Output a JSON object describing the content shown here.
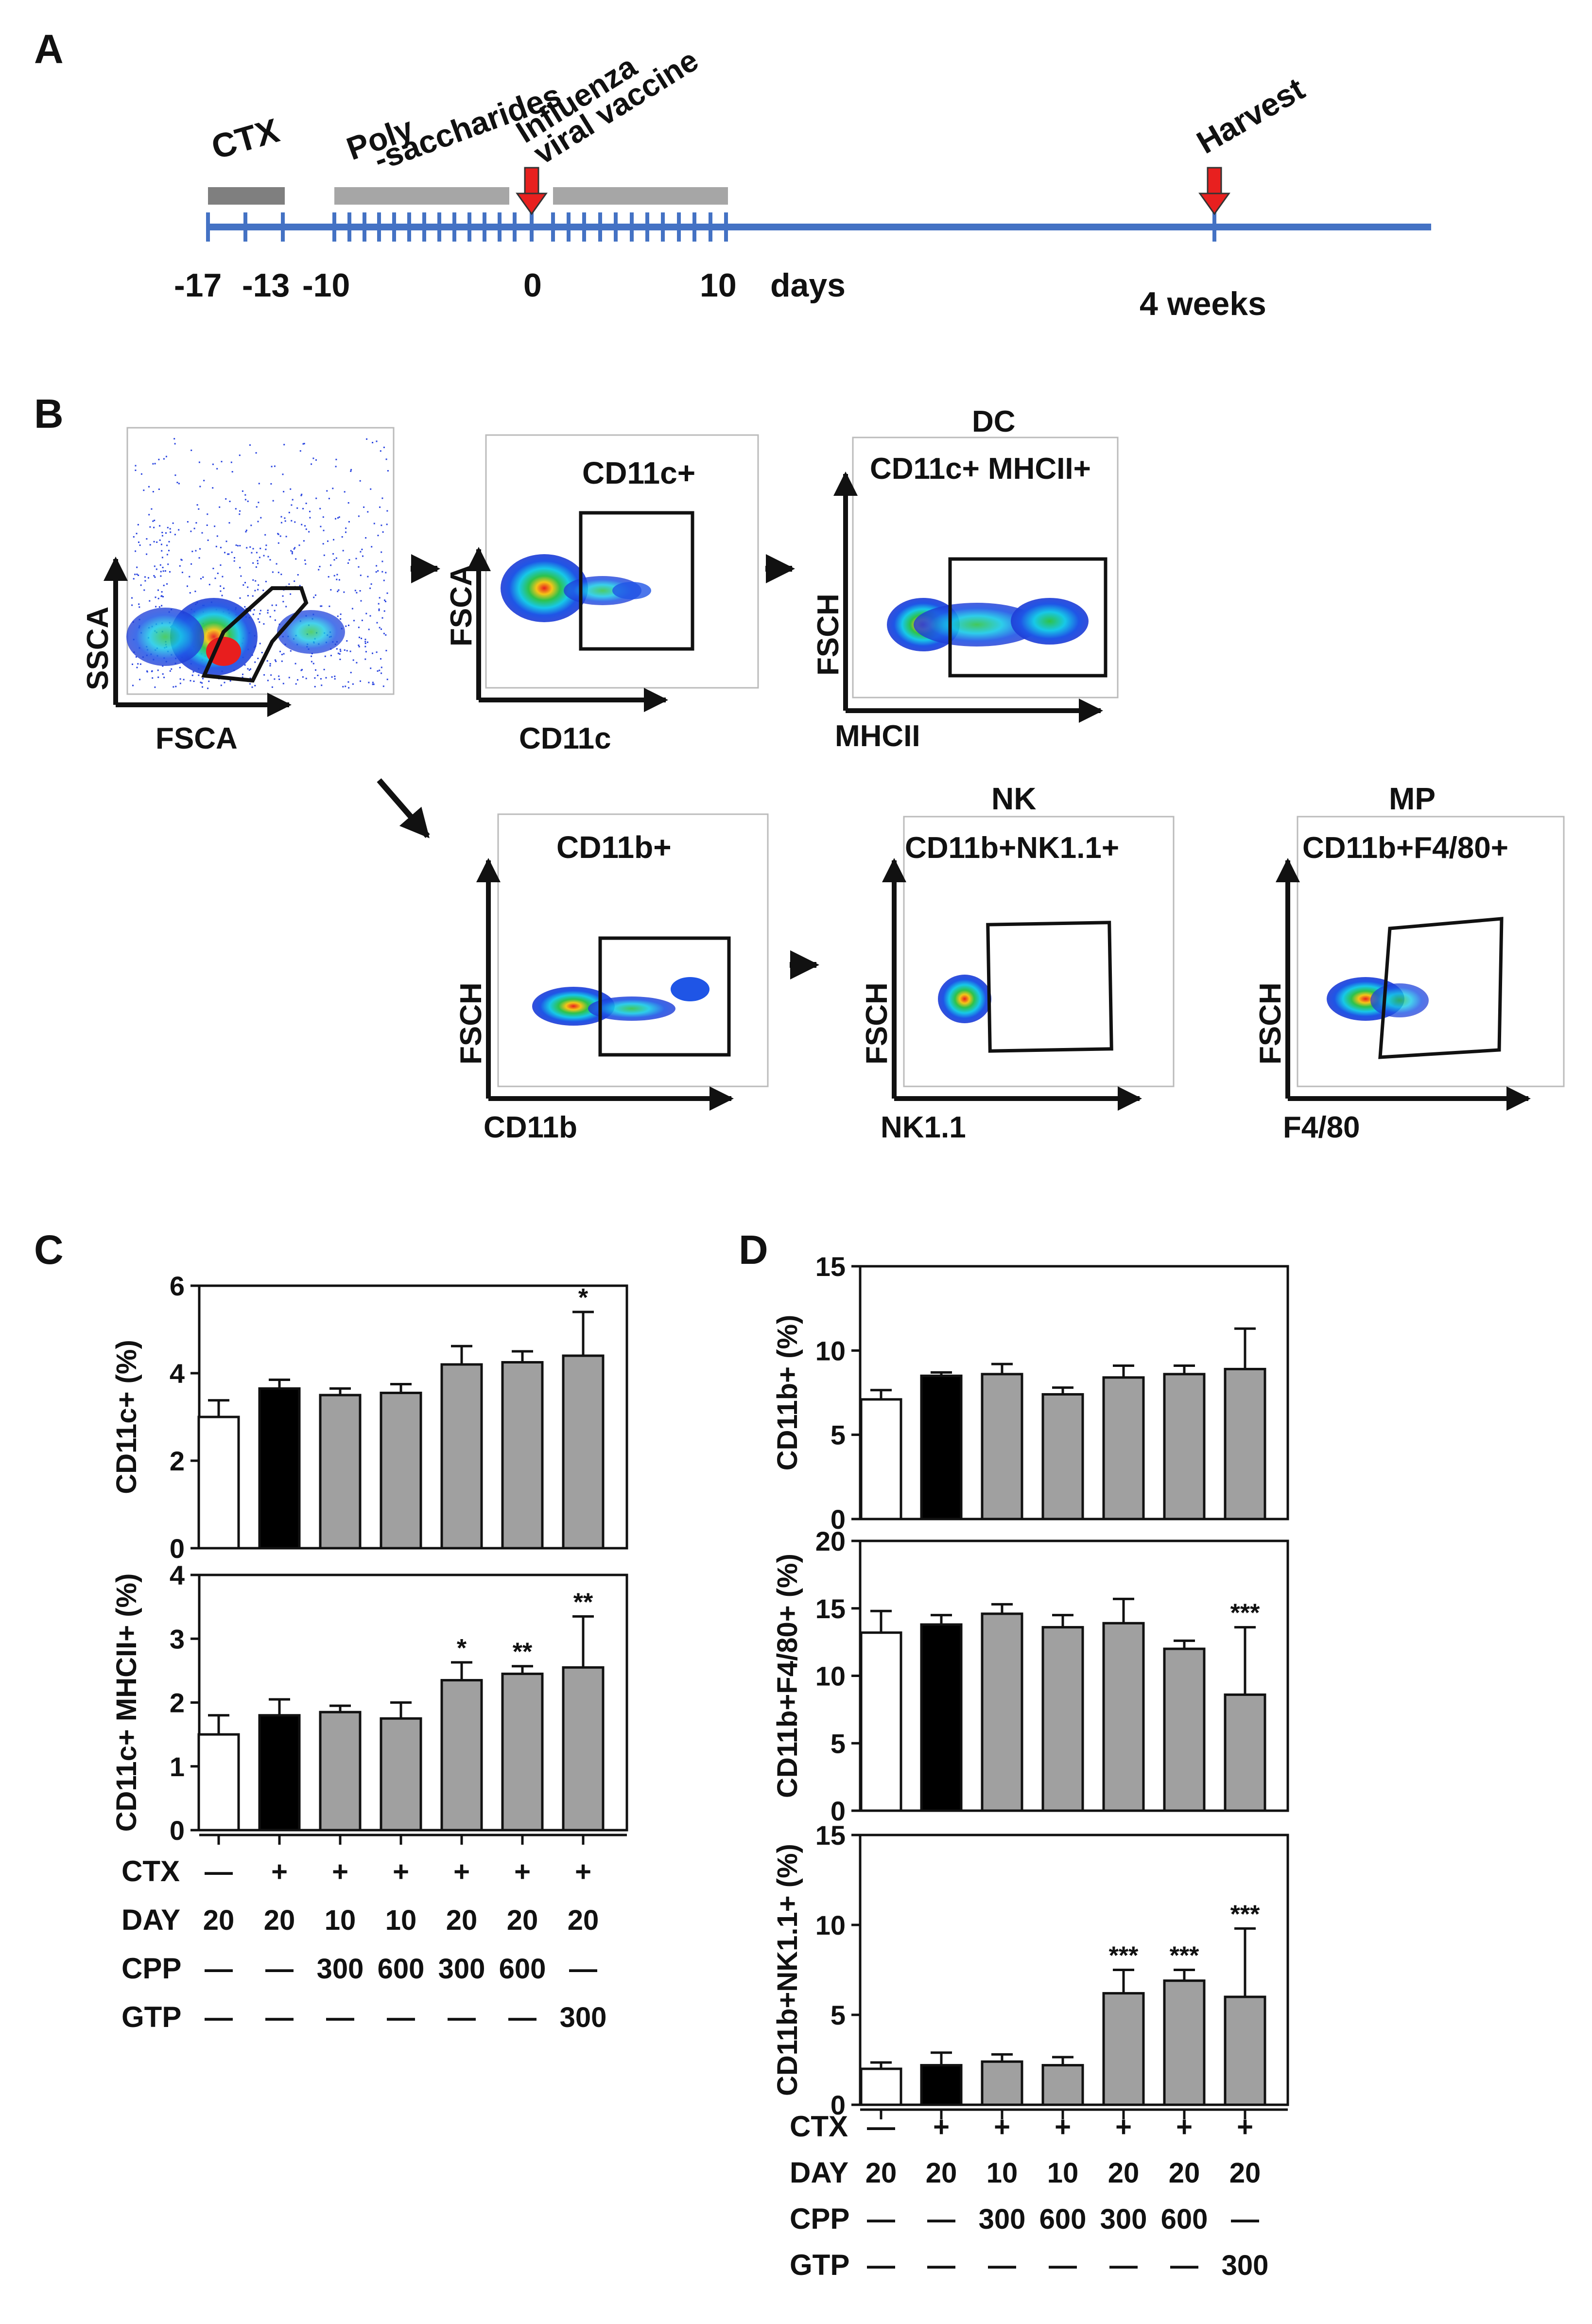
{
  "panel_labels": {
    "a": "A",
    "b": "B",
    "c": "C",
    "d": "D"
  },
  "timeline": {
    "ctx": "CTX",
    "poly_line1": "Poly",
    "poly_line2": "-saccharides",
    "flu_line1": "Influenza",
    "flu_line2": "viral vaccine",
    "harvest": "Harvest",
    "tick_labels": [
      "-17",
      "-13",
      "-10",
      "0",
      "10"
    ],
    "days": "days",
    "weeks": "4 weeks"
  },
  "flow": {
    "p1": {
      "x": "FSCA",
      "y": "SSCA"
    },
    "p2": {
      "title": "CD11c+",
      "x": "CD11c",
      "y": "FSCA"
    },
    "p3": {
      "header": "DC",
      "title": "CD11c+ MHCII+",
      "x": "MHCII",
      "y": "FSCH"
    },
    "p4": {
      "title": "CD11b+",
      "x": "CD11b",
      "y": "FSCH"
    },
    "p5": {
      "header": "NK",
      "title": "CD11b+NK1.1+",
      "x": "NK1.1",
      "y": "FSCH"
    },
    "p6": {
      "header": "MP",
      "title": "CD11b+F4/80+",
      "x": "F4/80",
      "y": "FSCH"
    }
  },
  "colors": {
    "bar_control": "#ffffff",
    "bar_ctx": "#000000",
    "bar_treated": "#a0a0a0",
    "timeline": "#4472c4",
    "arrow_red": "#e8201f",
    "gray_bar_dark": "#7f7f7f",
    "gray_bar_light": "#a6a6a6"
  },
  "condition_table": {
    "rows": [
      "CTX",
      "DAY",
      "CPP",
      "GTP"
    ],
    "values": [
      [
        "—",
        "+",
        "+",
        "+",
        "+",
        "+",
        "+"
      ],
      [
        "20",
        "20",
        "10",
        "10",
        "20",
        "20",
        "20"
      ],
      [
        "—",
        "—",
        "300",
        "600",
        "300",
        "600",
        "—"
      ],
      [
        "—",
        "—",
        "—",
        "—",
        "—",
        "—",
        "300"
      ]
    ]
  },
  "chart_data": [
    {
      "id": "C1",
      "type": "bar",
      "ylabel": "CD11c+  (%)",
      "ylim": [
        0,
        6
      ],
      "yticks": [
        "0",
        "2",
        "4",
        "6"
      ],
      "values": [
        3.0,
        3.65,
        3.5,
        3.55,
        4.2,
        4.25,
        4.4
      ],
      "errors": [
        0.38,
        0.2,
        0.15,
        0.2,
        0.42,
        0.25,
        1.0
      ],
      "sig": [
        "",
        "",
        "",
        "",
        "",
        "",
        "*"
      ]
    },
    {
      "id": "C2",
      "type": "bar",
      "ylabel": "CD11c+ MHCII+ (%)",
      "ylim": [
        0,
        4
      ],
      "yticks": [
        "0",
        "1",
        "2",
        "3",
        "4"
      ],
      "values": [
        1.5,
        1.8,
        1.85,
        1.75,
        2.35,
        2.45,
        2.55
      ],
      "errors": [
        0.3,
        0.25,
        0.1,
        0.25,
        0.28,
        0.12,
        0.8
      ],
      "sig": [
        "",
        "",
        "",
        "",
        "*",
        "**",
        "**"
      ]
    },
    {
      "id": "D1",
      "type": "bar",
      "ylabel": "CD11b+  (%)",
      "ylim": [
        0,
        15
      ],
      "yticks": [
        "0",
        "5",
        "10",
        "15"
      ],
      "values": [
        7.1,
        8.5,
        8.6,
        7.4,
        8.4,
        8.6,
        8.9
      ],
      "errors": [
        0.55,
        0.2,
        0.6,
        0.4,
        0.7,
        0.5,
        2.4
      ],
      "sig": [
        "",
        "",
        "",
        "",
        "",
        "",
        ""
      ]
    },
    {
      "id": "D2",
      "type": "bar",
      "ylabel": "CD11b+F4/80+  (%)",
      "ylim": [
        0,
        20
      ],
      "yticks": [
        "0",
        "5",
        "10",
        "15",
        "20"
      ],
      "values": [
        13.2,
        13.8,
        14.6,
        13.6,
        13.9,
        12.0,
        8.6
      ],
      "errors": [
        1.6,
        0.7,
        0.7,
        0.9,
        1.8,
        0.6,
        5.0
      ],
      "sig": [
        "",
        "",
        "",
        "",
        "",
        "",
        "***"
      ]
    },
    {
      "id": "D3",
      "type": "bar",
      "ylabel": "CD11b+NK1.1+  (%)",
      "ylim": [
        0,
        15
      ],
      "yticks": [
        "0",
        "5",
        "10",
        "15"
      ],
      "values": [
        2.0,
        2.2,
        2.4,
        2.2,
        6.2,
        6.9,
        6.0
      ],
      "errors": [
        0.35,
        0.7,
        0.4,
        0.45,
        1.3,
        0.6,
        3.8
      ],
      "sig": [
        "",
        "",
        "",
        "",
        "***",
        "***",
        "***"
      ]
    }
  ]
}
